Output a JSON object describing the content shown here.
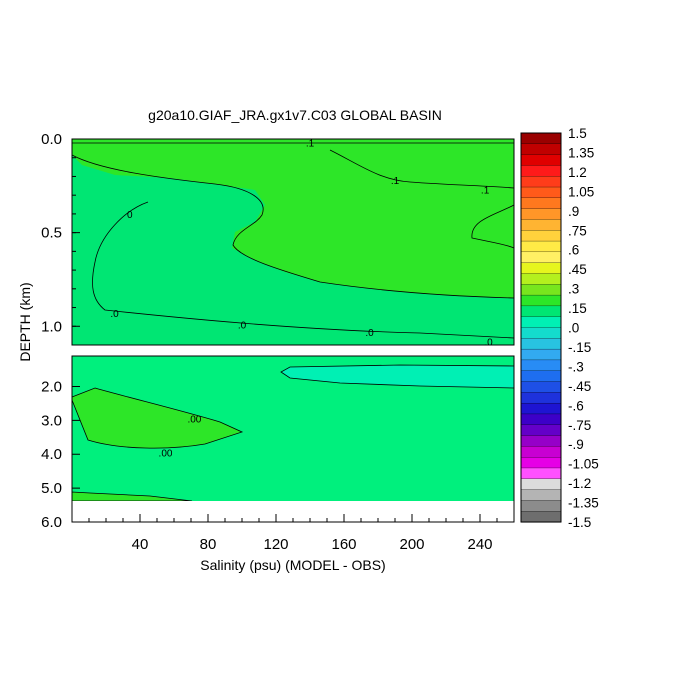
{
  "chart_data": {
    "type": "heatmap",
    "title": "g20a10.GIAF_JRA.gx1v7.C03 GLOBAL BASIN",
    "xlabel": "Salinity (psu) (MODEL - OBS)",
    "ylabel": "DEPTH (km)",
    "xlim": [
      0,
      260
    ],
    "x_ticks": [
      "40",
      "80",
      "120",
      "160",
      "200",
      "240"
    ],
    "x_tick_values": [
      40,
      80,
      120,
      160,
      200,
      240
    ],
    "upper_panel": {
      "ylim": [
        0.0,
        1.1
      ],
      "y_ticks": [
        "0.0",
        "0.5",
        "1.0"
      ],
      "y_tick_values": [
        0.0,
        0.5,
        1.0
      ],
      "contour_labels": [
        {
          "text": "0",
          "x": 34,
          "y": 0.4
        },
        {
          "text": ".1",
          "x": 140,
          "y": 0.02
        },
        {
          "text": ".1",
          "x": 190,
          "y": 0.22
        },
        {
          "text": ".1",
          "x": 243,
          "y": 0.27
        },
        {
          "text": ".0",
          "x": 25,
          "y": 0.93
        },
        {
          "text": ".0",
          "x": 100,
          "y": 0.99
        },
        {
          "text": ".0",
          "x": 175,
          "y": 1.03
        },
        {
          "text": ".0",
          "x": 245,
          "y": 1.08
        }
      ]
    },
    "lower_panel": {
      "ylim": [
        1.1,
        6.0
      ],
      "y_ticks": [
        "2.0",
        "3.0",
        "4.0",
        "5.0",
        "6.0"
      ],
      "y_tick_values": [
        2.0,
        3.0,
        4.0,
        5.0,
        6.0
      ],
      "contour_labels": [
        {
          "text": ".00",
          "x": 72,
          "y": 2.95
        },
        {
          "text": ".00",
          "x": 55,
          "y": 3.95
        }
      ],
      "no_data_below": 5.35
    },
    "colorbar": {
      "levels": [
        "1.5",
        "1.35",
        "1.2",
        "1.05",
        ".9",
        ".75",
        ".6",
        ".45",
        ".3",
        ".15",
        ".0",
        "-.15",
        "-.3",
        "-.45",
        "-.6",
        "-.75",
        "-.9",
        "-1.05",
        "-1.2",
        "-1.35",
        "-1.5"
      ],
      "colors": [
        "#9a0000",
        "#c00000",
        "#e00000",
        "#ff1a1a",
        "#ff3c1a",
        "#ff5a1a",
        "#ff781e",
        "#ff9628",
        "#ffb432",
        "#ffd23c",
        "#ffea46",
        "#fff064",
        "#e6f51e",
        "#b4f01e",
        "#78e61e",
        "#2de628",
        "#00e673",
        "#00f0b4",
        "#14dccd",
        "#28c3e1",
        "#32aaf0",
        "#288cf5",
        "#1e6ef0",
        "#1e50e6",
        "#1e32dc",
        "#1e14d2",
        "#3c00c8",
        "#6400c8",
        "#9600c8",
        "#c800d2",
        "#e600e6",
        "#ff50ff",
        "#dcdcdc",
        "#b4b4b4",
        "#8c8c8c",
        "#6e6e6e"
      ]
    },
    "field_colors": {
      "upper_main": "#2de628",
      "near_zero": "#00e673",
      "zero_band": "#00f07d"
    }
  }
}
